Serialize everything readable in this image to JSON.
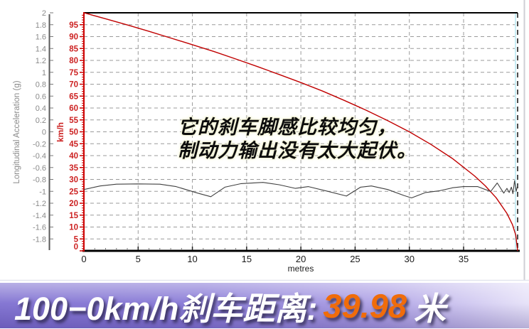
{
  "chart_data": {
    "type": "line",
    "title": "",
    "xlabel": "metres",
    "x_range": [
      0,
      39.98
    ],
    "x_major_ticks": [
      0,
      5,
      10,
      15,
      20,
      25,
      30,
      35
    ],
    "x_minor_step": 1,
    "grid": "dashed",
    "grid_color": "#9b9b9b",
    "frame": {
      "top_color": "#000000",
      "bottom_color": "#000000",
      "right_style": "dashed",
      "right_color": "#111111",
      "cursor_line_color": "#c8edf4",
      "edge_line_color": "#cfcfd6",
      "separator_color": "#e2e5ee"
    },
    "y_axes": [
      {
        "id": "speed",
        "label": "km/h",
        "range": [
          0,
          100
        ],
        "tick_step": 5,
        "minor_step": 1,
        "ticks": [
          0,
          5,
          10,
          15,
          20,
          25,
          30,
          35,
          40,
          45,
          50,
          55,
          60,
          65,
          70,
          75,
          80,
          85,
          90,
          95
        ],
        "label_color": "#cc2222",
        "axis_line_color": "#cc0000"
      },
      {
        "id": "accel",
        "label": "Longitudinal Acceleration (g)",
        "range": [
          -2,
          2
        ],
        "tick_step": 0.2,
        "ticks": [
          -1.8,
          -1.6,
          -1.4,
          -1.2,
          -1,
          -0.8,
          -0.6,
          -0.4,
          -0.2,
          0,
          0.2,
          0.4,
          0.6,
          0.8,
          1,
          1.2,
          1.4,
          1.6,
          1.8,
          2
        ],
        "label_color": "#8a8a8a",
        "axis_line_color": "#5a5a5a"
      }
    ],
    "series": [
      {
        "name": "speed (km/h)",
        "axis": "speed",
        "color": "#c00000",
        "points": [
          [
            0,
            100
          ],
          [
            2,
            97.5
          ],
          [
            4,
            94.9
          ],
          [
            6,
            92.2
          ],
          [
            8,
            89.4
          ],
          [
            10,
            86.6
          ],
          [
            12,
            83.7
          ],
          [
            14,
            80.6
          ],
          [
            16,
            77.4
          ],
          [
            18,
            74.1
          ],
          [
            20,
            70.7
          ],
          [
            22,
            67.1
          ],
          [
            24,
            63.2
          ],
          [
            26,
            59.1
          ],
          [
            28,
            54.7
          ],
          [
            30,
            50.0
          ],
          [
            32,
            44.7
          ],
          [
            34,
            38.7
          ],
          [
            36,
            31.5
          ],
          [
            37,
            27.3
          ],
          [
            38,
            22.3
          ],
          [
            39,
            15.7
          ],
          [
            39.5,
            11.0
          ],
          [
            39.8,
            6.7
          ],
          [
            39.98,
            0
          ]
        ]
      },
      {
        "name": "longitudinal acceleration (g)",
        "axis": "accel",
        "color": "#404040",
        "points": [
          [
            0,
            -0.97
          ],
          [
            1.5,
            -0.91
          ],
          [
            3,
            -0.88
          ],
          [
            5,
            -0.875
          ],
          [
            7,
            -0.88
          ],
          [
            8.5,
            -0.92
          ],
          [
            10.5,
            -1.03
          ],
          [
            11.7,
            -1.09
          ],
          [
            13,
            -0.93
          ],
          [
            14.5,
            -0.87
          ],
          [
            16.5,
            -0.85
          ],
          [
            18,
            -0.89
          ],
          [
            19.5,
            -0.95
          ],
          [
            20.7,
            -0.92
          ],
          [
            22.5,
            -1.0
          ],
          [
            24.2,
            -1.08
          ],
          [
            25.5,
            -0.93
          ],
          [
            26.5,
            -0.91
          ],
          [
            28,
            -0.97
          ],
          [
            29.5,
            -1.07
          ],
          [
            30.2,
            -1.11
          ],
          [
            31.5,
            -1.02
          ],
          [
            32.8,
            -0.99
          ],
          [
            34,
            -0.94
          ],
          [
            35,
            -0.92
          ],
          [
            36.3,
            -0.92
          ],
          [
            37,
            -0.97
          ],
          [
            37.5,
            -1.0
          ],
          [
            38.1,
            -0.86
          ],
          [
            38.7,
            -1.03
          ],
          [
            39.0,
            -0.95
          ],
          [
            39.2,
            -1.02
          ],
          [
            39.4,
            -0.93
          ],
          [
            39.55,
            -1.04
          ],
          [
            39.7,
            -0.82
          ],
          [
            39.85,
            -1.0
          ],
          [
            39.98,
            -0.9
          ]
        ]
      }
    ]
  },
  "annotation": {
    "line1": "它的刹车脚感比较均匀，",
    "line2": "制动力输出没有太大起伏。"
  },
  "banner": {
    "label": "100−0km/h刹车距离:",
    "value": "39.98",
    "unit": "米",
    "value_color": "#f06c0a",
    "text_color": "#ffffff"
  }
}
